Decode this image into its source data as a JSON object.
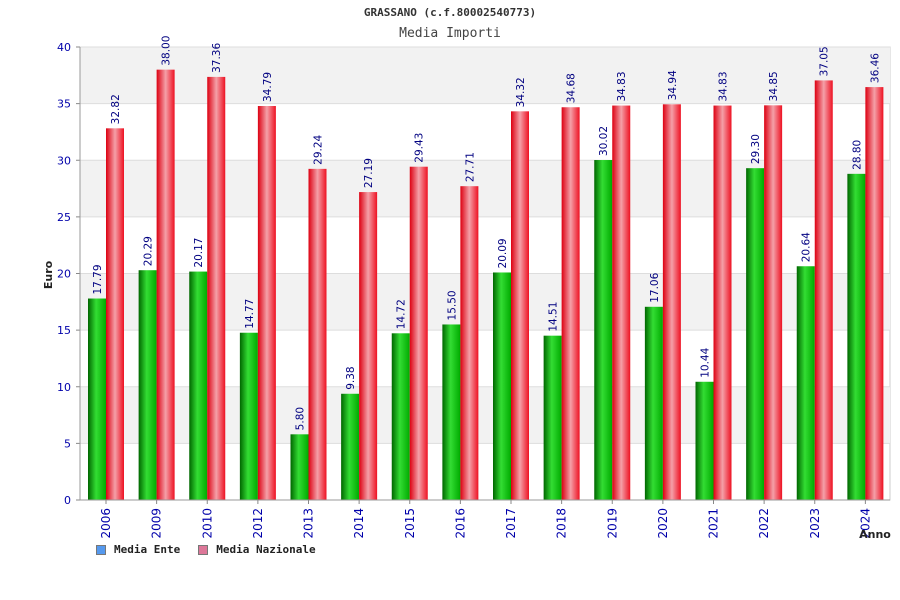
{
  "header": {
    "title": "GRASSANO (c.f.80002540773)",
    "subtitle": "Media Importi"
  },
  "legend": {
    "items": [
      {
        "label": "Media Ente",
        "color": "#5599ee"
      },
      {
        "label": "Media Nazionale",
        "color": "#dd7799"
      }
    ]
  },
  "colors": {
    "ente_bar": "#00aa00",
    "nazionale_bar": "#ee1122",
    "value_label": "#000080",
    "axis_text": "#0000aa",
    "band": "#f2f2f2"
  },
  "chart_data": {
    "type": "bar",
    "title": "GRASSANO (c.f.80002540773)",
    "subtitle": "Media Importi",
    "xlabel": "Anno",
    "ylabel": "Euro",
    "ylim": [
      0,
      40
    ],
    "yticks": [
      0,
      5,
      10,
      15,
      20,
      25,
      30,
      35,
      40
    ],
    "grid": true,
    "legend_position": "bottom-left",
    "categories": [
      "2006",
      "2009",
      "2010",
      "2012",
      "2013",
      "2014",
      "2015",
      "2016",
      "2017",
      "2018",
      "2019",
      "2020",
      "2021",
      "2022",
      "2023",
      "2024"
    ],
    "series": [
      {
        "name": "Media Ente",
        "values": [
          17.79,
          20.29,
          20.17,
          14.77,
          5.8,
          9.38,
          14.72,
          15.5,
          20.09,
          14.51,
          30.02,
          17.06,
          10.44,
          29.3,
          20.64,
          28.8
        ]
      },
      {
        "name": "Media Nazionale",
        "values": [
          32.82,
          38.0,
          37.36,
          34.79,
          29.24,
          27.19,
          29.43,
          27.71,
          34.32,
          34.68,
          34.83,
          34.94,
          34.83,
          34.85,
          37.05,
          36.46
        ]
      }
    ],
    "value_labels": [
      [
        "17.79",
        "20.29",
        "20.17",
        "14.77",
        "5.80",
        "9.38",
        "14.72",
        "15.50",
        "20.09",
        "14.51",
        "30.02",
        "17.06",
        "10.44",
        "29.30",
        "20.64",
        "28.80"
      ],
      [
        "32.82",
        "38.00",
        "37.36",
        "34.79",
        "29.24",
        "27.19",
        "29.43",
        "27.71",
        "34.32",
        "34.68",
        "34.83",
        "34.94",
        "34.83",
        "34.85",
        "37.05",
        "36.46"
      ]
    ]
  }
}
